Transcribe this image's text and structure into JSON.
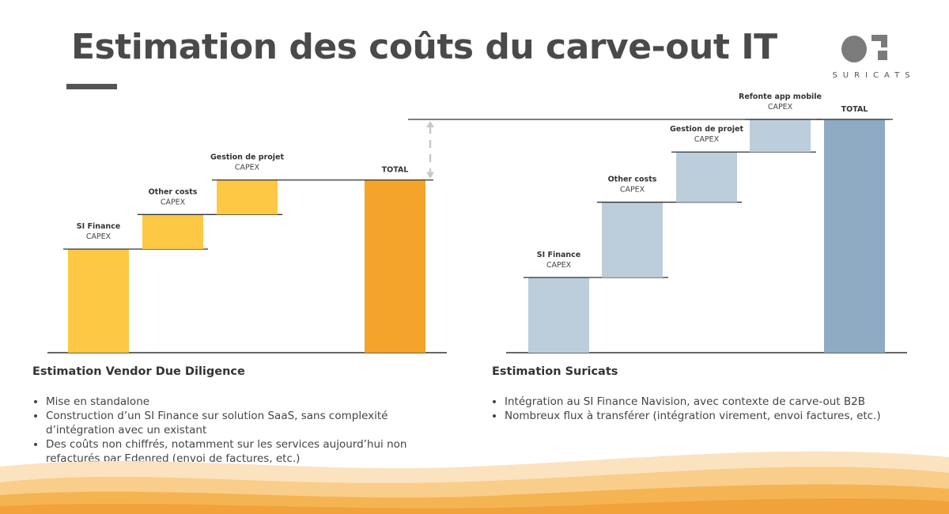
{
  "title": "Estimation des coûts du carve-out IT",
  "logo": {
    "wordmark": "SURICATS",
    "icon": "suricats-logo-icon"
  },
  "colors": {
    "left_bar": "#fdc844",
    "left_total": "#f4a42a",
    "right_bar": "#bccddb",
    "right_total": "#8faac3",
    "axis": "#333333",
    "dashed_arrow": "#c8c8c8"
  },
  "chart_data": [
    {
      "type": "bar",
      "subtype": "waterfall",
      "categories": [
        "SI Finance",
        "Other costs",
        "Gestion de projet",
        "TOTAL"
      ],
      "sublabels": [
        "CAPEX",
        "CAPEX",
        "CAPEX",
        ""
      ],
      "values": [
        3,
        1,
        1,
        5
      ],
      "is_total": [
        false,
        false,
        false,
        true
      ],
      "ylim": [
        0,
        6.8
      ]
    },
    {
      "type": "bar",
      "subtype": "waterfall",
      "categories": [
        "SI Finance",
        "Other costs",
        "Gestion de projet",
        "Refonte app mobile",
        "TOTAL"
      ],
      "sublabels": [
        "CAPEX",
        "CAPEX",
        "CAPEX",
        "CAPEX",
        ""
      ],
      "values": [
        3,
        3,
        2,
        1.3,
        9.3
      ],
      "is_total": [
        false,
        false,
        false,
        false,
        true
      ],
      "ylim": [
        0,
        9.3
      ]
    }
  ],
  "left_panel": {
    "heading": "Estimation Vendor Due Diligence",
    "bullets": [
      "Mise en standalone",
      "Construction d’un SI Finance sur solution SaaS, sans complexité d’intégration avec un existant",
      "Des coûts non chiffrés, notamment sur les services aujourd’hui non refacturés par Edenred (envoi de factures, etc.)"
    ]
  },
  "right_panel": {
    "heading": "Estimation Suricats",
    "bullets": [
      "Intégration au SI Finance Navision, avec contexte de carve-out B2B",
      "Nombreux flux à transférer (intégration virement, envoi factures, etc.)"
    ]
  }
}
